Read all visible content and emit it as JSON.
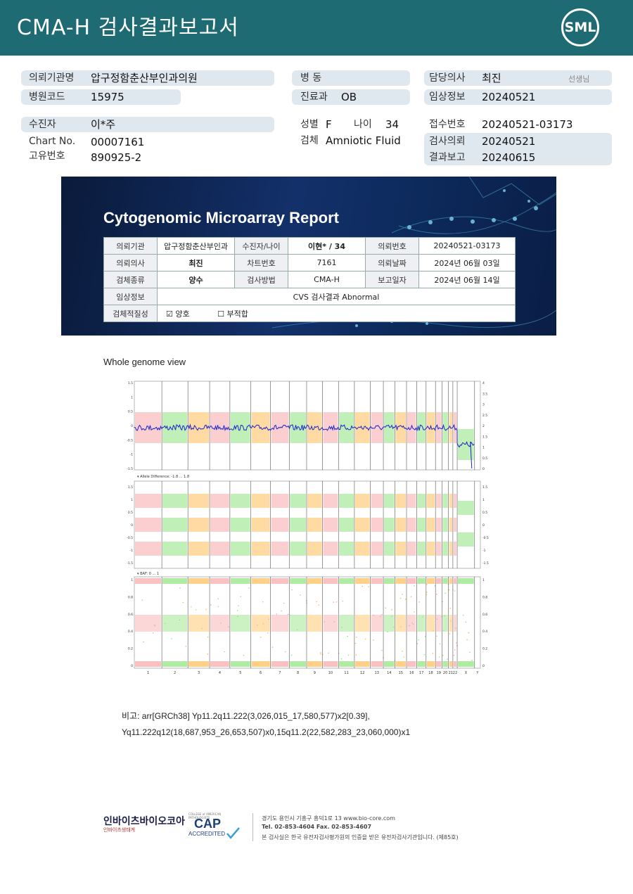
{
  "header": {
    "title": "CMA-H 검사결과보고서",
    "logo": "SML"
  },
  "info": {
    "institution_label": "의뢰기관명",
    "institution_value": "압구정함춘산부인과의원",
    "hospital_code_label": "병원코드",
    "hospital_code_value": "15975",
    "ward_label": "병 동",
    "ward_value": "",
    "dept_label": "진료과",
    "dept_value": "OB",
    "doctor_label": "담당의사",
    "doctor_value": "최진",
    "doctor_suffix": "선생님",
    "clinical_label": "임상정보",
    "clinical_value": "20240521",
    "patient_label": "수진자",
    "patient_value": "이*주",
    "chart_label": "Chart No.",
    "chart_value": "00007161",
    "unique_label": "고유번호",
    "unique_value": "890925-2",
    "sex_label": "성별",
    "sex_value": "F",
    "age_label": "나이",
    "age_value": "34",
    "specimen_label": "검체",
    "specimen_value": "Amniotic Fluid",
    "reception_label": "접수번호",
    "reception_value": "20240521-03173",
    "request_label": "검사의뢰",
    "request_value": "20240521",
    "result_label": "결과보고",
    "result_value": "20240615"
  },
  "report": {
    "title": "Cytogenomic Microarray Report",
    "r1": [
      "의뢰기관",
      "압구정함춘산부인과",
      "수진자/나이",
      "이현* / 34",
      "의뢰번호",
      "20240521-03173"
    ],
    "r2": [
      "의뢰의사",
      "최진",
      "차트번호",
      "7161",
      "의뢰날짜",
      "2024년 06월 03일"
    ],
    "r3": [
      "검체종류",
      "양수",
      "검사방법",
      "CMA-H",
      "보고일자",
      "2024년 06월 14일"
    ],
    "r4": [
      "임상정보",
      "CVS 검사결과 Abnormal"
    ],
    "r5": [
      "검체적질성",
      "양호",
      "부적합"
    ]
  },
  "genome": {
    "title": "Whole genome view",
    "allele_label": "Allele Difference: -1.8 ... 1.8",
    "baf_label": "BAF: 0 ... 1",
    "chromosomes": [
      "1",
      "2",
      "3",
      "4",
      "5",
      "6",
      "7",
      "8",
      "9",
      "10",
      "11",
      "12",
      "13",
      "14",
      "15",
      "16",
      "17",
      "18",
      "19",
      "20",
      "21",
      "22",
      "X",
      "Y"
    ],
    "left_ticks_top": [
      "1.5",
      "1",
      "0.5",
      "0",
      "-0.5",
      "-1",
      "-1.5"
    ],
    "right_ticks_top": [
      "4",
      "3.5",
      "3",
      "2.5",
      "2",
      "1.5",
      "1",
      "0.5",
      "0"
    ],
    "ticks_mid": [
      "1.5",
      "1",
      "0.5",
      "0",
      "-0.5",
      "-1",
      "-1.5"
    ],
    "ticks_bottom": [
      "1",
      "0.8",
      "0.6",
      "0.4",
      "0.2",
      "0"
    ],
    "colors": [
      "#f7a7a7",
      "#8ee27d",
      "#ffbc55"
    ],
    "line_color": "#1a22cc"
  },
  "notes": {
    "line1_label": "비고:",
    "line1": "arr[GRCh38] Yp11.2q11.222(3,026,015_17,580,577)x2[0.39],",
    "line2": "Yq11.222q12(18,687,953_26,653,507)x0,15q11.2(22,582,283_23,060,000)x1"
  },
  "footer": {
    "brand": "인바이츠바이오코아",
    "brand_sub": "인바이츠생태계",
    "cap_top": "COLLEGE of AMERICAN PATHOLOGISTS",
    "cap": "CAP",
    "accredited": "ACCREDITED",
    "address": "경기도 용인시 기흥구 흥덕1로 13   www.bio-core.com",
    "tel": "Tel. 02-853-4604   Fax. 02-853-4607",
    "cert": "본 검사실은 한국 유전자검사평가원의 인증을 받은 유전자검사기관입니다. (제85호)"
  }
}
